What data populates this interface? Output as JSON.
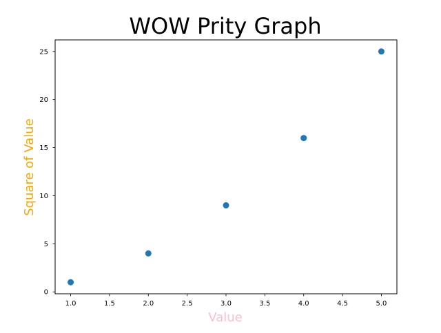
{
  "chart_data": {
    "type": "scatter",
    "title": "WOW Prity Graph",
    "xlabel": "Value",
    "ylabel": "Square of Value",
    "x": [
      1,
      2,
      3,
      4,
      5
    ],
    "y": [
      1,
      4,
      9,
      16,
      25
    ],
    "xlim": [
      0.8,
      5.2
    ],
    "ylim": [
      -0.2,
      26.2
    ],
    "x_ticks": [
      1.0,
      1.5,
      2.0,
      2.5,
      3.0,
      3.5,
      4.0,
      4.5,
      5.0
    ],
    "x_tick_labels": [
      "1.0",
      "1.5",
      "2.0",
      "2.5",
      "3.0",
      "3.5",
      "4.0",
      "4.5",
      "5.0"
    ],
    "y_ticks": [
      0,
      5,
      10,
      15,
      20,
      25
    ],
    "y_tick_labels": [
      "0",
      "5",
      "10",
      "15",
      "20",
      "25"
    ],
    "grid": false,
    "colors": {
      "marker": "#1f77b4",
      "title": "#000000",
      "xlabel": "#ffc0cb",
      "ylabel": "#ffa500",
      "axes": "#000000",
      "background": "#ffffff"
    }
  }
}
